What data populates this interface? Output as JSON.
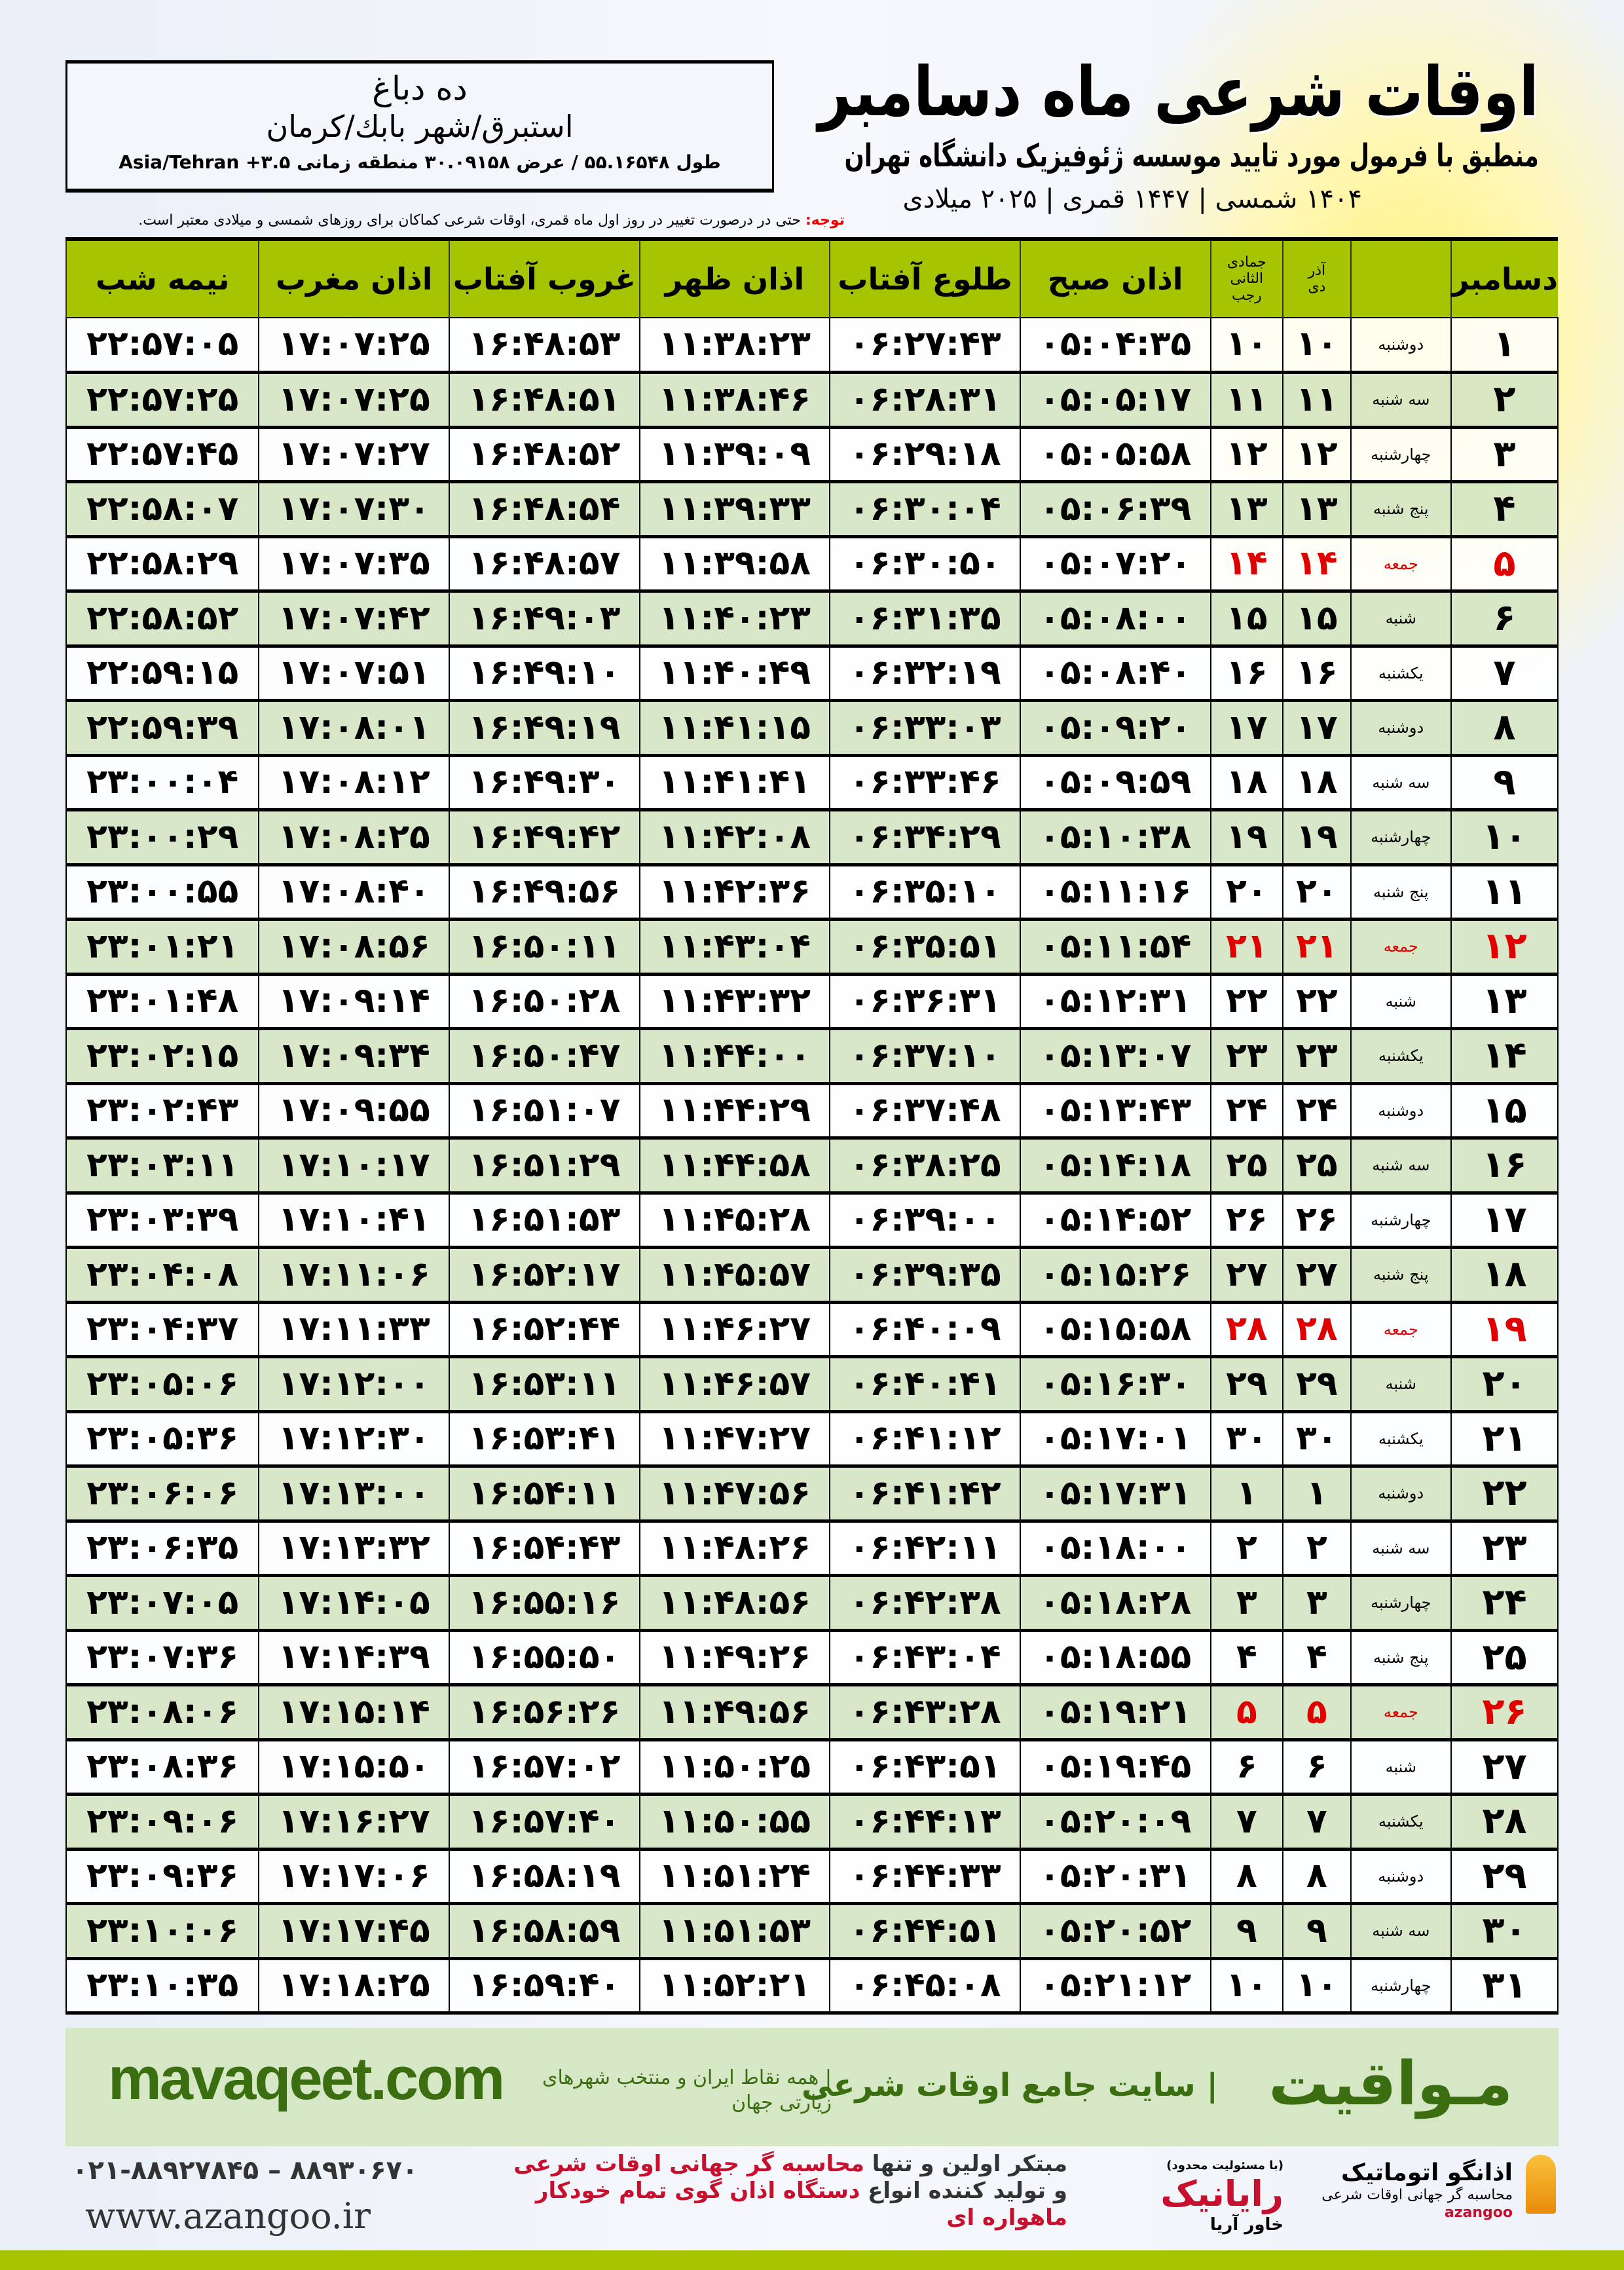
{
  "header": {
    "title": "اوقات شرعی ماه دسامبر",
    "subtitle": "منطبق با فرمول مورد تایید موسسه ژئوفیزیک دانشگاه تهران",
    "dates": "۱۴۰۴ شمسی | ۱۴۴۷ قمری | ۲۰۲۵ میلادی"
  },
  "location": {
    "name": "ده دباغ",
    "region": "استبرق/شهر بابك/کرمان",
    "coords": "طول ۵۵.۱۶۵۴۸ / عرض ۳۰.۰۹۱۵۸ منطقه زمانی ۳.۵+ Asia/Tehran"
  },
  "note": {
    "label": "توجه:",
    "text": " حتی در درصورت تغییر در روز اول ماه قمری، اوقات شرعی کماکان برای روزهای شمسی و میلادی معتبر است."
  },
  "table": {
    "headers": {
      "day": "دسامبر",
      "shamsi_top": "آذر",
      "shamsi_bottom": "دی",
      "lunar_top": "جمادی الثانی",
      "lunar_bottom": "رجب",
      "fajr": "اذان صبح",
      "sunrise": "طلوع آفتاب",
      "dhuhr": "اذان ظهر",
      "sunset": "غروب آفتاب",
      "maghrib": "اذان مغرب",
      "midnight": "نیمه شب"
    },
    "friday_color": "#e00000",
    "rows": [
      [
        "۱",
        "دوشنبه",
        "۱۰",
        "۱۰",
        "۰۵:۰۴:۳۵",
        "۰۶:۲۷:۴۳",
        "۱۱:۳۸:۲۳",
        "۱۶:۴۸:۵۳",
        "۱۷:۰۷:۲۵",
        "۲۲:۵۷:۰۵",
        false
      ],
      [
        "۲",
        "سه شنبه",
        "۱۱",
        "۱۱",
        "۰۵:۰۵:۱۷",
        "۰۶:۲۸:۳۱",
        "۱۱:۳۸:۴۶",
        "۱۶:۴۸:۵۱",
        "۱۷:۰۷:۲۵",
        "۲۲:۵۷:۲۵",
        false
      ],
      [
        "۳",
        "چهارشنبه",
        "۱۲",
        "۱۲",
        "۰۵:۰۵:۵۸",
        "۰۶:۲۹:۱۸",
        "۱۱:۳۹:۰۹",
        "۱۶:۴۸:۵۲",
        "۱۷:۰۷:۲۷",
        "۲۲:۵۷:۴۵",
        false
      ],
      [
        "۴",
        "پنج شنبه",
        "۱۳",
        "۱۳",
        "۰۵:۰۶:۳۹",
        "۰۶:۳۰:۰۴",
        "۱۱:۳۹:۳۳",
        "۱۶:۴۸:۵۴",
        "۱۷:۰۷:۳۰",
        "۲۲:۵۸:۰۷",
        false
      ],
      [
        "۵",
        "جمعه",
        "۱۴",
        "۱۴",
        "۰۵:۰۷:۲۰",
        "۰۶:۳۰:۵۰",
        "۱۱:۳۹:۵۸",
        "۱۶:۴۸:۵۷",
        "۱۷:۰۷:۳۵",
        "۲۲:۵۸:۲۹",
        true
      ],
      [
        "۶",
        "شنبه",
        "۱۵",
        "۱۵",
        "۰۵:۰۸:۰۰",
        "۰۶:۳۱:۳۵",
        "۱۱:۴۰:۲۳",
        "۱۶:۴۹:۰۳",
        "۱۷:۰۷:۴۲",
        "۲۲:۵۸:۵۲",
        false
      ],
      [
        "۷",
        "یکشنبه",
        "۱۶",
        "۱۶",
        "۰۵:۰۸:۴۰",
        "۰۶:۳۲:۱۹",
        "۱۱:۴۰:۴۹",
        "۱۶:۴۹:۱۰",
        "۱۷:۰۷:۵۱",
        "۲۲:۵۹:۱۵",
        false
      ],
      [
        "۸",
        "دوشنبه",
        "۱۷",
        "۱۷",
        "۰۵:۰۹:۲۰",
        "۰۶:۳۳:۰۳",
        "۱۱:۴۱:۱۵",
        "۱۶:۴۹:۱۹",
        "۱۷:۰۸:۰۱",
        "۲۲:۵۹:۳۹",
        false
      ],
      [
        "۹",
        "سه شنبه",
        "۱۸",
        "۱۸",
        "۰۵:۰۹:۵۹",
        "۰۶:۳۳:۴۶",
        "۱۱:۴۱:۴۱",
        "۱۶:۴۹:۳۰",
        "۱۷:۰۸:۱۲",
        "۲۳:۰۰:۰۴",
        false
      ],
      [
        "۱۰",
        "چهارشنبه",
        "۱۹",
        "۱۹",
        "۰۵:۱۰:۳۸",
        "۰۶:۳۴:۲۹",
        "۱۱:۴۲:۰۸",
        "۱۶:۴۹:۴۲",
        "۱۷:۰۸:۲۵",
        "۲۳:۰۰:۲۹",
        false
      ],
      [
        "۱۱",
        "پنج شنبه",
        "۲۰",
        "۲۰",
        "۰۵:۱۱:۱۶",
        "۰۶:۳۵:۱۰",
        "۱۱:۴۲:۳۶",
        "۱۶:۴۹:۵۶",
        "۱۷:۰۸:۴۰",
        "۲۳:۰۰:۵۵",
        false
      ],
      [
        "۱۲",
        "جمعه",
        "۲۱",
        "۲۱",
        "۰۵:۱۱:۵۴",
        "۰۶:۳۵:۵۱",
        "۱۱:۴۳:۰۴",
        "۱۶:۵۰:۱۱",
        "۱۷:۰۸:۵۶",
        "۲۳:۰۱:۲۱",
        true
      ],
      [
        "۱۳",
        "شنبه",
        "۲۲",
        "۲۲",
        "۰۵:۱۲:۳۱",
        "۰۶:۳۶:۳۱",
        "۱۱:۴۳:۳۲",
        "۱۶:۵۰:۲۸",
        "۱۷:۰۹:۱۴",
        "۲۳:۰۱:۴۸",
        false
      ],
      [
        "۱۴",
        "یکشنبه",
        "۲۳",
        "۲۳",
        "۰۵:۱۳:۰۷",
        "۰۶:۳۷:۱۰",
        "۱۱:۴۴:۰۰",
        "۱۶:۵۰:۴۷",
        "۱۷:۰۹:۳۴",
        "۲۳:۰۲:۱۵",
        false
      ],
      [
        "۱۵",
        "دوشنبه",
        "۲۴",
        "۲۴",
        "۰۵:۱۳:۴۳",
        "۰۶:۳۷:۴۸",
        "۱۱:۴۴:۲۹",
        "۱۶:۵۱:۰۷",
        "۱۷:۰۹:۵۵",
        "۲۳:۰۲:۴۳",
        false
      ],
      [
        "۱۶",
        "سه شنبه",
        "۲۵",
        "۲۵",
        "۰۵:۱۴:۱۸",
        "۰۶:۳۸:۲۵",
        "۱۱:۴۴:۵۸",
        "۱۶:۵۱:۲۹",
        "۱۷:۱۰:۱۷",
        "۲۳:۰۳:۱۱",
        false
      ],
      [
        "۱۷",
        "چهارشنبه",
        "۲۶",
        "۲۶",
        "۰۵:۱۴:۵۲",
        "۰۶:۳۹:۰۰",
        "۱۱:۴۵:۲۸",
        "۱۶:۵۱:۵۳",
        "۱۷:۱۰:۴۱",
        "۲۳:۰۳:۳۹",
        false
      ],
      [
        "۱۸",
        "پنج شنبه",
        "۲۷",
        "۲۷",
        "۰۵:۱۵:۲۶",
        "۰۶:۳۹:۳۵",
        "۱۱:۴۵:۵۷",
        "۱۶:۵۲:۱۷",
        "۱۷:۱۱:۰۶",
        "۲۳:۰۴:۰۸",
        false
      ],
      [
        "۱۹",
        "جمعه",
        "۲۸",
        "۲۸",
        "۰۵:۱۵:۵۸",
        "۰۶:۴۰:۰۹",
        "۱۱:۴۶:۲۷",
        "۱۶:۵۲:۴۴",
        "۱۷:۱۱:۳۳",
        "۲۳:۰۴:۳۷",
        true
      ],
      [
        "۲۰",
        "شنبه",
        "۲۹",
        "۲۹",
        "۰۵:۱۶:۳۰",
        "۰۶:۴۰:۴۱",
        "۱۱:۴۶:۵۷",
        "۱۶:۵۳:۱۱",
        "۱۷:۱۲:۰۰",
        "۲۳:۰۵:۰۶",
        false
      ],
      [
        "۲۱",
        "یکشنبه",
        "۳۰",
        "۳۰",
        "۰۵:۱۷:۰۱",
        "۰۶:۴۱:۱۲",
        "۱۱:۴۷:۲۷",
        "۱۶:۵۳:۴۱",
        "۱۷:۱۲:۳۰",
        "۲۳:۰۵:۳۶",
        false
      ],
      [
        "۲۲",
        "دوشنبه",
        "۱",
        "۱",
        "۰۵:۱۷:۳۱",
        "۰۶:۴۱:۴۲",
        "۱۱:۴۷:۵۶",
        "۱۶:۵۴:۱۱",
        "۱۷:۱۳:۰۰",
        "۲۳:۰۶:۰۶",
        false
      ],
      [
        "۲۳",
        "سه شنبه",
        "۲",
        "۲",
        "۰۵:۱۸:۰۰",
        "۰۶:۴۲:۱۱",
        "۱۱:۴۸:۲۶",
        "۱۶:۵۴:۴۳",
        "۱۷:۱۳:۳۲",
        "۲۳:۰۶:۳۵",
        false
      ],
      [
        "۲۴",
        "چهارشنبه",
        "۳",
        "۳",
        "۰۵:۱۸:۲۸",
        "۰۶:۴۲:۳۸",
        "۱۱:۴۸:۵۶",
        "۱۶:۵۵:۱۶",
        "۱۷:۱۴:۰۵",
        "۲۳:۰۷:۰۵",
        false
      ],
      [
        "۲۵",
        "پنج شنبه",
        "۴",
        "۴",
        "۰۵:۱۸:۵۵",
        "۰۶:۴۳:۰۴",
        "۱۱:۴۹:۲۶",
        "۱۶:۵۵:۵۰",
        "۱۷:۱۴:۳۹",
        "۲۳:۰۷:۳۶",
        false
      ],
      [
        "۲۶",
        "جمعه",
        "۵",
        "۵",
        "۰۵:۱۹:۲۱",
        "۰۶:۴۳:۲۸",
        "۱۱:۴۹:۵۶",
        "۱۶:۵۶:۲۶",
        "۱۷:۱۵:۱۴",
        "۲۳:۰۸:۰۶",
        true
      ],
      [
        "۲۷",
        "شنبه",
        "۶",
        "۶",
        "۰۵:۱۹:۴۵",
        "۰۶:۴۳:۵۱",
        "۱۱:۵۰:۲۵",
        "۱۶:۵۷:۰۲",
        "۱۷:۱۵:۵۰",
        "۲۳:۰۸:۳۶",
        false
      ],
      [
        "۲۸",
        "یکشنبه",
        "۷",
        "۷",
        "۰۵:۲۰:۰۹",
        "۰۶:۴۴:۱۳",
        "۱۱:۵۰:۵۵",
        "۱۶:۵۷:۴۰",
        "۱۷:۱۶:۲۷",
        "۲۳:۰۹:۰۶",
        false
      ],
      [
        "۲۹",
        "دوشنبه",
        "۸",
        "۸",
        "۰۵:۲۰:۳۱",
        "۰۶:۴۴:۳۳",
        "۱۱:۵۱:۲۴",
        "۱۶:۵۸:۱۹",
        "۱۷:۱۷:۰۶",
        "۲۳:۰۹:۳۶",
        false
      ],
      [
        "۳۰",
        "سه شنبه",
        "۹",
        "۹",
        "۰۵:۲۰:۵۲",
        "۰۶:۴۴:۵۱",
        "۱۱:۵۱:۵۳",
        "۱۶:۵۸:۵۹",
        "۱۷:۱۷:۴۵",
        "۲۳:۱۰:۰۶",
        false
      ],
      [
        "۳۱",
        "چهارشنبه",
        "۱۰",
        "۱۰",
        "۰۵:۲۱:۱۲",
        "۰۶:۴۵:۰۸",
        "۱۱:۵۲:۲۱",
        "۱۶:۵۹:۴۰",
        "۱۷:۱۸:۲۵",
        "۲۳:۱۰:۳۵",
        false
      ]
    ]
  },
  "banner": {
    "logo": "مـواقیت",
    "tagline": "| سایت جامع اوقات شرعی",
    "tagline2": "| همه نقاط ایران و منتخب شهرهای زیارتی جهان",
    "url": "mavaqeet.com",
    "color": "#3b6d11"
  },
  "footer": {
    "phone": "۰۲۱-۸۸۹۲۷۸۴۵ – ۸۸۹۳۰۶۷۰",
    "website": "www.azangoo.ir",
    "promo1a": "مبتکر اولین و تنها ",
    "promo1b": "محاسبه گر جهانی اوقات شرعی",
    "promo2a": "و تولید کننده انواع ",
    "promo2b": "دستگاه اذان گوی تمام خودکار ماهواره ای",
    "brand_raya_note": "(با مسئولیت محدود)",
    "brand_raya": "رایانیک",
    "brand_raya_sub": "خاور آریا",
    "brand_azangoo": "اذانگو اتوماتیک",
    "brand_azangoo_sub": "محاسبه گر جهانی اوقات شرعی",
    "brand_azangoo_latin": "azangoo"
  }
}
